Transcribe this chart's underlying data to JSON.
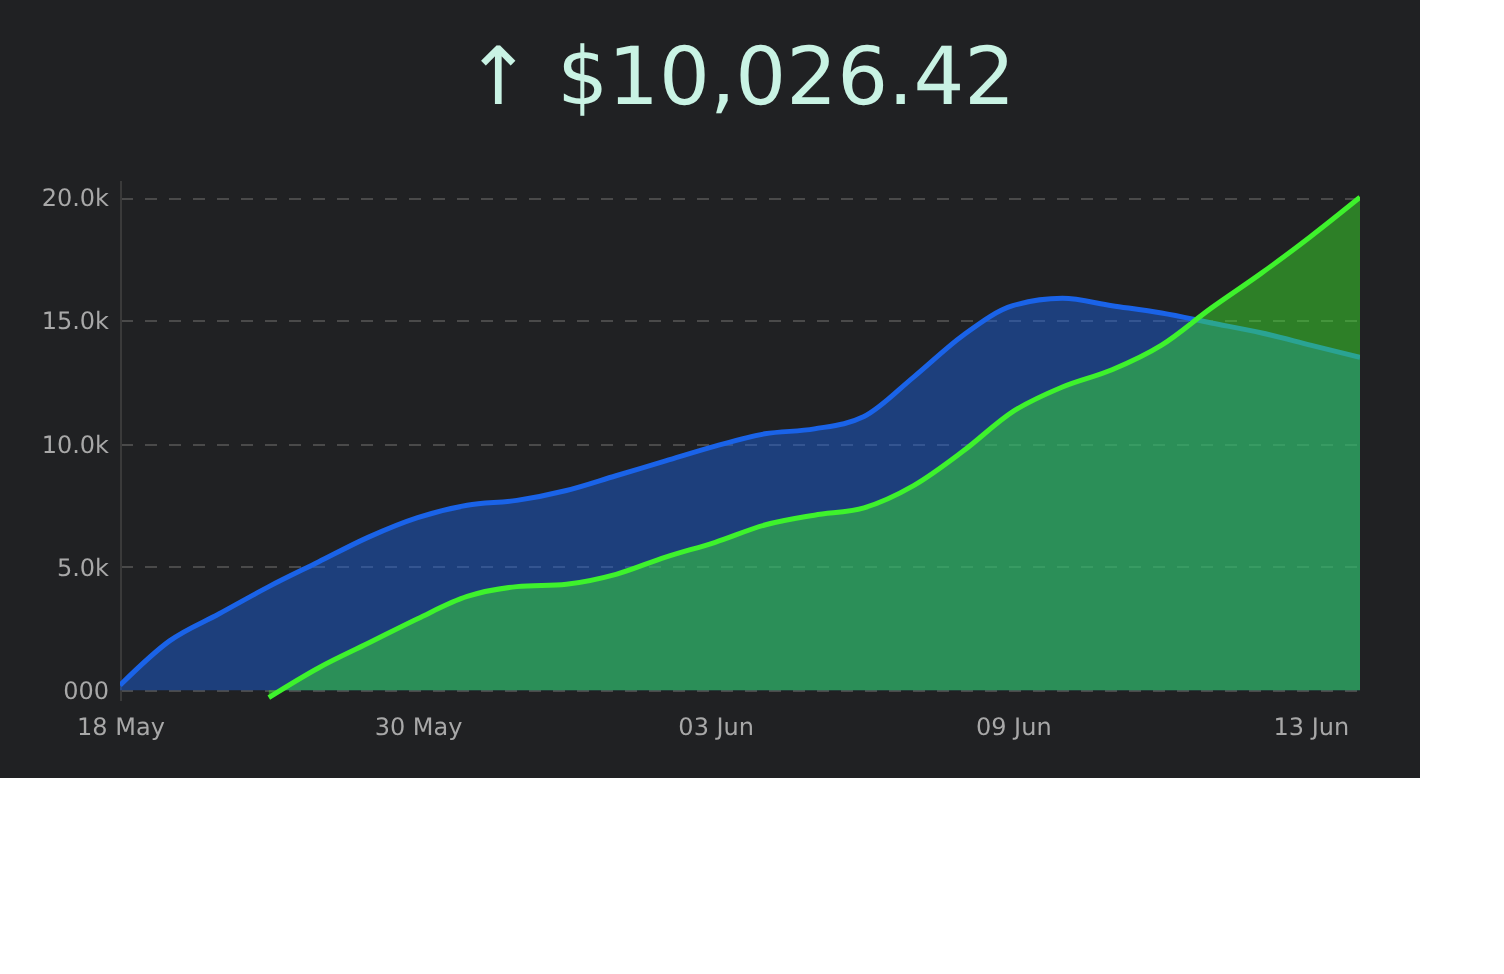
{
  "chart_data": {
    "type": "area",
    "title": "↑ $10,026.42",
    "categories": [
      "18 May",
      null,
      null,
      null,
      null,
      null,
      "30 May",
      null,
      null,
      null,
      null,
      null,
      "03 Jun",
      null,
      null,
      null,
      null,
      null,
      "09 Jun",
      null,
      null,
      null,
      null,
      null,
      "13 Jun",
      null
    ],
    "ylim": [
      -400,
      20700
    ],
    "yticks": [
      {
        "value": 0,
        "label": "000"
      },
      {
        "value": 5000,
        "label": "5.0k"
      },
      {
        "value": 10000,
        "label": "10.0k"
      },
      {
        "value": 15000,
        "label": "15.0k"
      },
      {
        "value": 20000,
        "label": "20.0k"
      }
    ],
    "grid": "y",
    "line_style": "solid",
    "series": [
      {
        "color": "#1a63e8",
        "values": [
          200,
          2000,
          3100,
          4200,
          5200,
          6200,
          7000,
          7500,
          7700,
          8100,
          8700,
          9300,
          9900,
          10400,
          10600,
          11100,
          12700,
          14400,
          15600,
          15900,
          15600,
          15300,
          14900,
          14500,
          14000,
          13500
        ]
      },
      {
        "color": "#3ef22c",
        "values": [
          null,
          null,
          null,
          -300,
          900,
          1900,
          2900,
          3800,
          4200,
          4300,
          4700,
          5400,
          6000,
          6700,
          7100,
          7400,
          8300,
          9700,
          11300,
          12300,
          13000,
          14000,
          15500,
          16900,
          18400,
          20000
        ]
      }
    ]
  }
}
